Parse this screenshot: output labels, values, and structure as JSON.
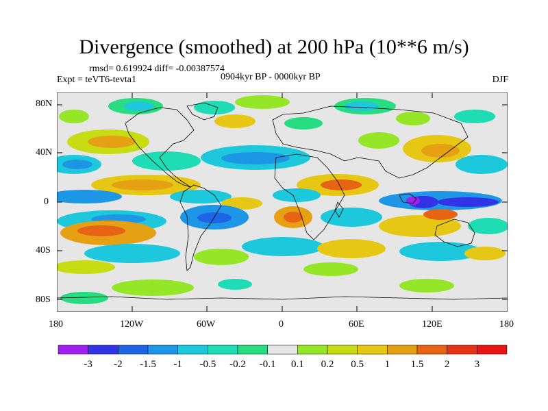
{
  "title": "Divergence (smoothed) at 200 hPa (10**6 m/s)",
  "stats_line": "rmsd= 0.619924 diff= -0.00387574",
  "experiment": "Expt = teVT6-tevta1",
  "period": "0904kyr BP - 0000kyr BP",
  "season": "DJF",
  "lat_ticks": [
    "80N",
    "40N",
    "0",
    "40S",
    "80S"
  ],
  "lon_ticks": [
    "180",
    "120W",
    "60W",
    "0",
    "60E",
    "120E",
    "180"
  ],
  "colorbar": {
    "labels": [
      "-3",
      "-2",
      "-1.5",
      "-1",
      "-0.5",
      "-0.2",
      "-0.1",
      "0.1",
      "0.2",
      "0.5",
      "1",
      "1.5",
      "2",
      "3"
    ],
    "colors": [
      "#a020f0",
      "#3232e6",
      "#1e64e6",
      "#1e96e6",
      "#1ec8dc",
      "#1edcb4",
      "#28dc82",
      "#e6e6e6",
      "#96e628",
      "#c8dc14",
      "#e6c814",
      "#e6a014",
      "#e66414",
      "#e63214",
      "#e61414"
    ]
  },
  "colors": {
    "land_outline": "#000000",
    "background": "#e6e6e6"
  }
}
